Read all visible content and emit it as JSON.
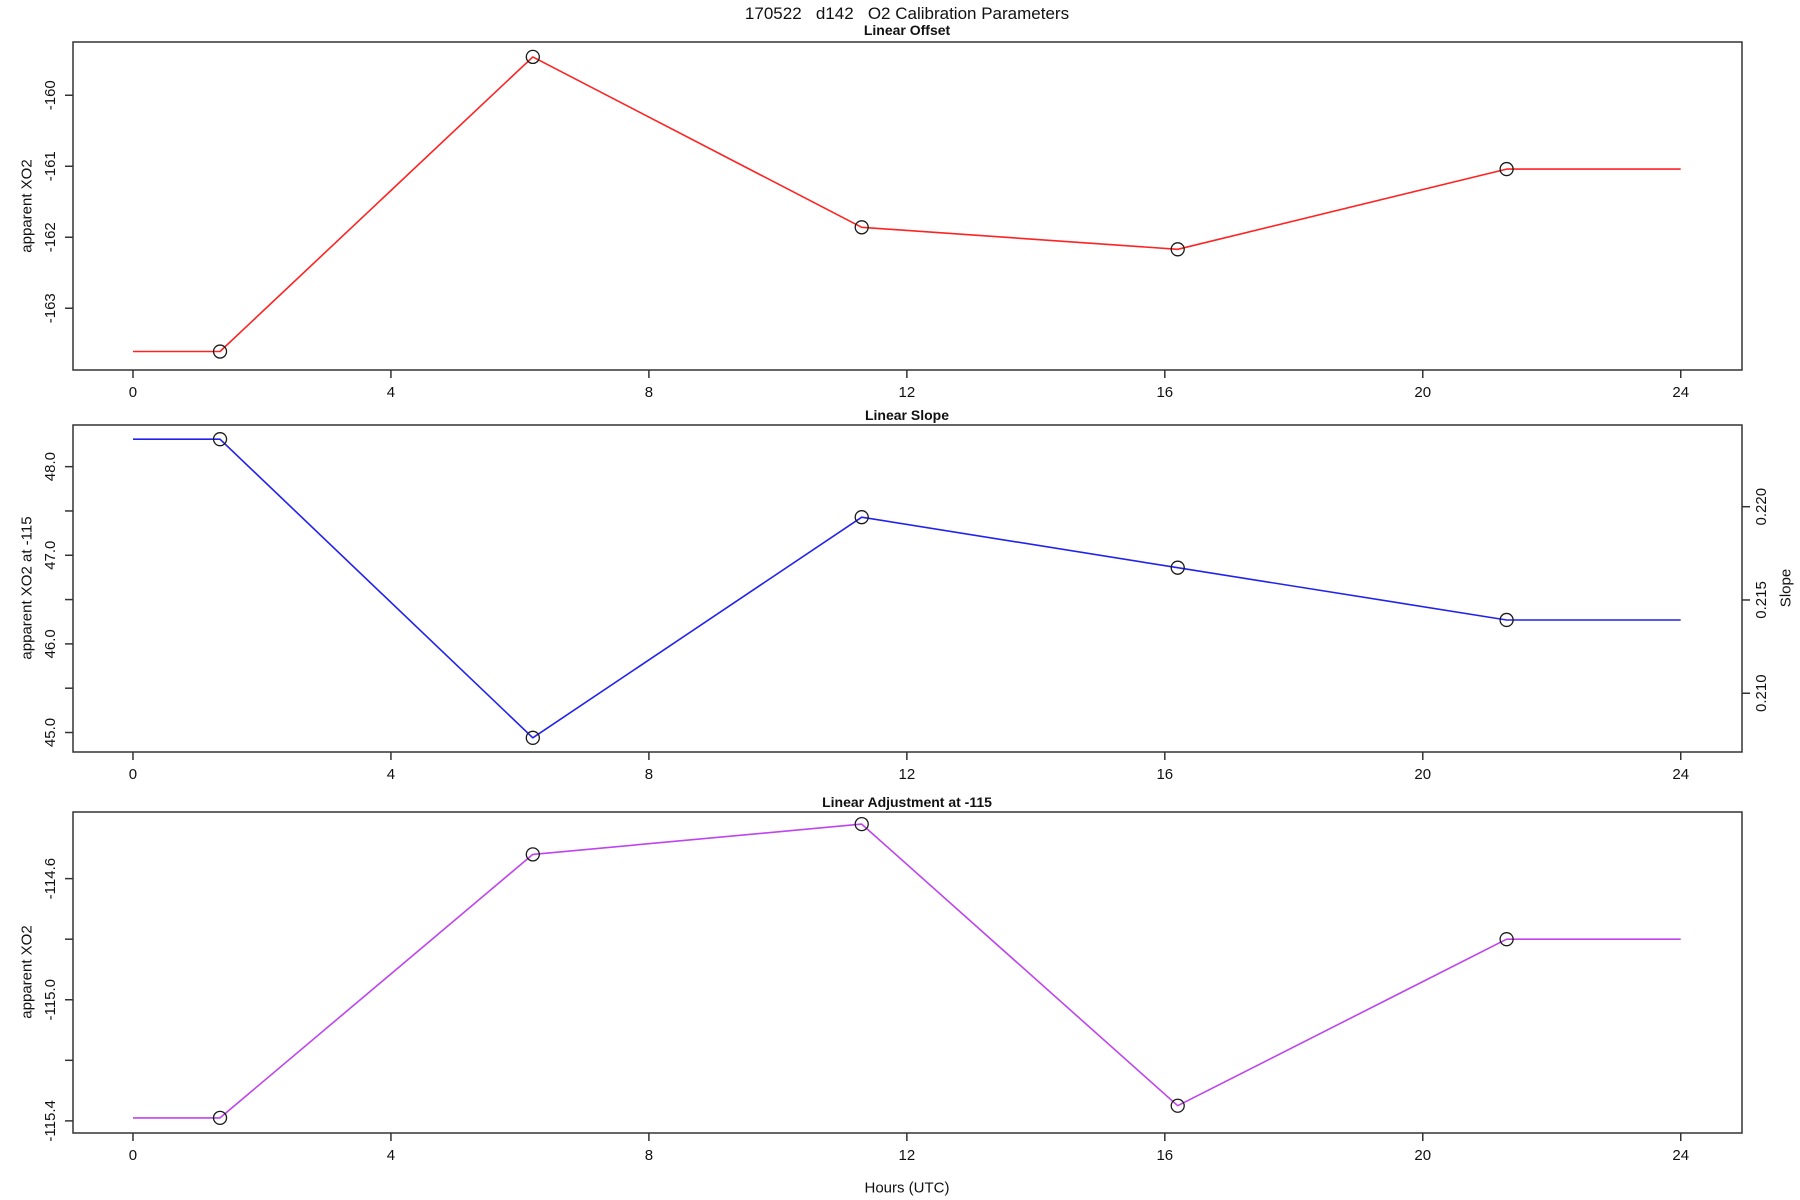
{
  "page": {
    "title": "170522   d142   O2 Calibration Parameters",
    "xlabel": "Hours (UTC)"
  },
  "chart_data": [
    {
      "type": "line",
      "title": "Linear Offset",
      "ylabel": "apparent XO2",
      "color": "#ff2222",
      "marker": "open-circle",
      "x": [
        1.35,
        6.2,
        11.3,
        16.2,
        21.3
      ],
      "y": [
        -163.61,
        -159.46,
        -161.86,
        -162.17,
        -161.04
      ],
      "line_extends_to_x": [
        0,
        24
      ],
      "xlim": [
        -0.93,
        24.95
      ],
      "ylim": [
        -163.87,
        -159.25
      ],
      "xticks": [
        0,
        4,
        8,
        12,
        16,
        20,
        24
      ],
      "xtick_labels": [
        "0",
        "4",
        "8",
        "12",
        "16",
        "20",
        "24"
      ],
      "yticks_major": [
        -160,
        -161,
        -162,
        -163
      ],
      "ytick_labels": [
        "-160",
        "-161",
        "-162",
        "-163"
      ],
      "yticks_minor": [],
      "grid": false,
      "legend": null
    },
    {
      "type": "line",
      "title": "Linear Slope",
      "ylabel": "apparent XO2 at -115",
      "ylabel_right": "Slope",
      "color": "#2222ee",
      "marker": "open-circle",
      "x": [
        1.35,
        6.2,
        11.3,
        16.2,
        21.3
      ],
      "y": [
        48.31,
        44.94,
        47.43,
        46.86,
        46.27
      ],
      "line_extends_to_x": [
        0,
        24
      ],
      "xlim": [
        -0.93,
        24.95
      ],
      "ylim": [
        44.78,
        48.47
      ],
      "xticks": [
        0,
        4,
        8,
        12,
        16,
        20,
        24
      ],
      "xtick_labels": [
        "0",
        "4",
        "8",
        "12",
        "16",
        "20",
        "24"
      ],
      "yticks_major": [
        48.0,
        47.0,
        46.0,
        45.0
      ],
      "ytick_labels": [
        "48.0",
        "47.0",
        "46.0",
        "45.0"
      ],
      "yticks_minor": [
        47.5,
        46.5,
        45.5
      ],
      "right_ylim": [
        0.20685,
        0.22438
      ],
      "right_ticks": [
        0.22,
        0.215,
        0.21
      ],
      "right_tick_labels": [
        "0.220",
        "0.215",
        "0.210"
      ],
      "grid": false,
      "legend": null
    },
    {
      "type": "line",
      "title": "Linear Adjustment at -115",
      "ylabel": "apparent XO2",
      "color": "#bf44ee",
      "marker": "open-circle",
      "x": [
        1.35,
        6.2,
        11.3,
        16.2,
        21.3
      ],
      "y": [
        -115.39,
        -114.52,
        -114.42,
        -115.35,
        -114.8
      ],
      "line_extends_to_x": [
        0,
        24
      ],
      "xlim": [
        -0.93,
        24.95
      ],
      "ylim": [
        -115.44,
        -114.38
      ],
      "xticks": [
        0,
        4,
        8,
        12,
        16,
        20,
        24
      ],
      "xtick_labels": [
        "0",
        "4",
        "8",
        "12",
        "16",
        "20",
        "24"
      ],
      "yticks_major": [
        -114.6,
        -115.0,
        -115.4
      ],
      "ytick_labels": [
        "-114.6",
        "-115.0",
        "-115.4"
      ],
      "yticks_minor": [
        -114.8,
        -115.2
      ],
      "grid": false,
      "legend": null
    }
  ]
}
